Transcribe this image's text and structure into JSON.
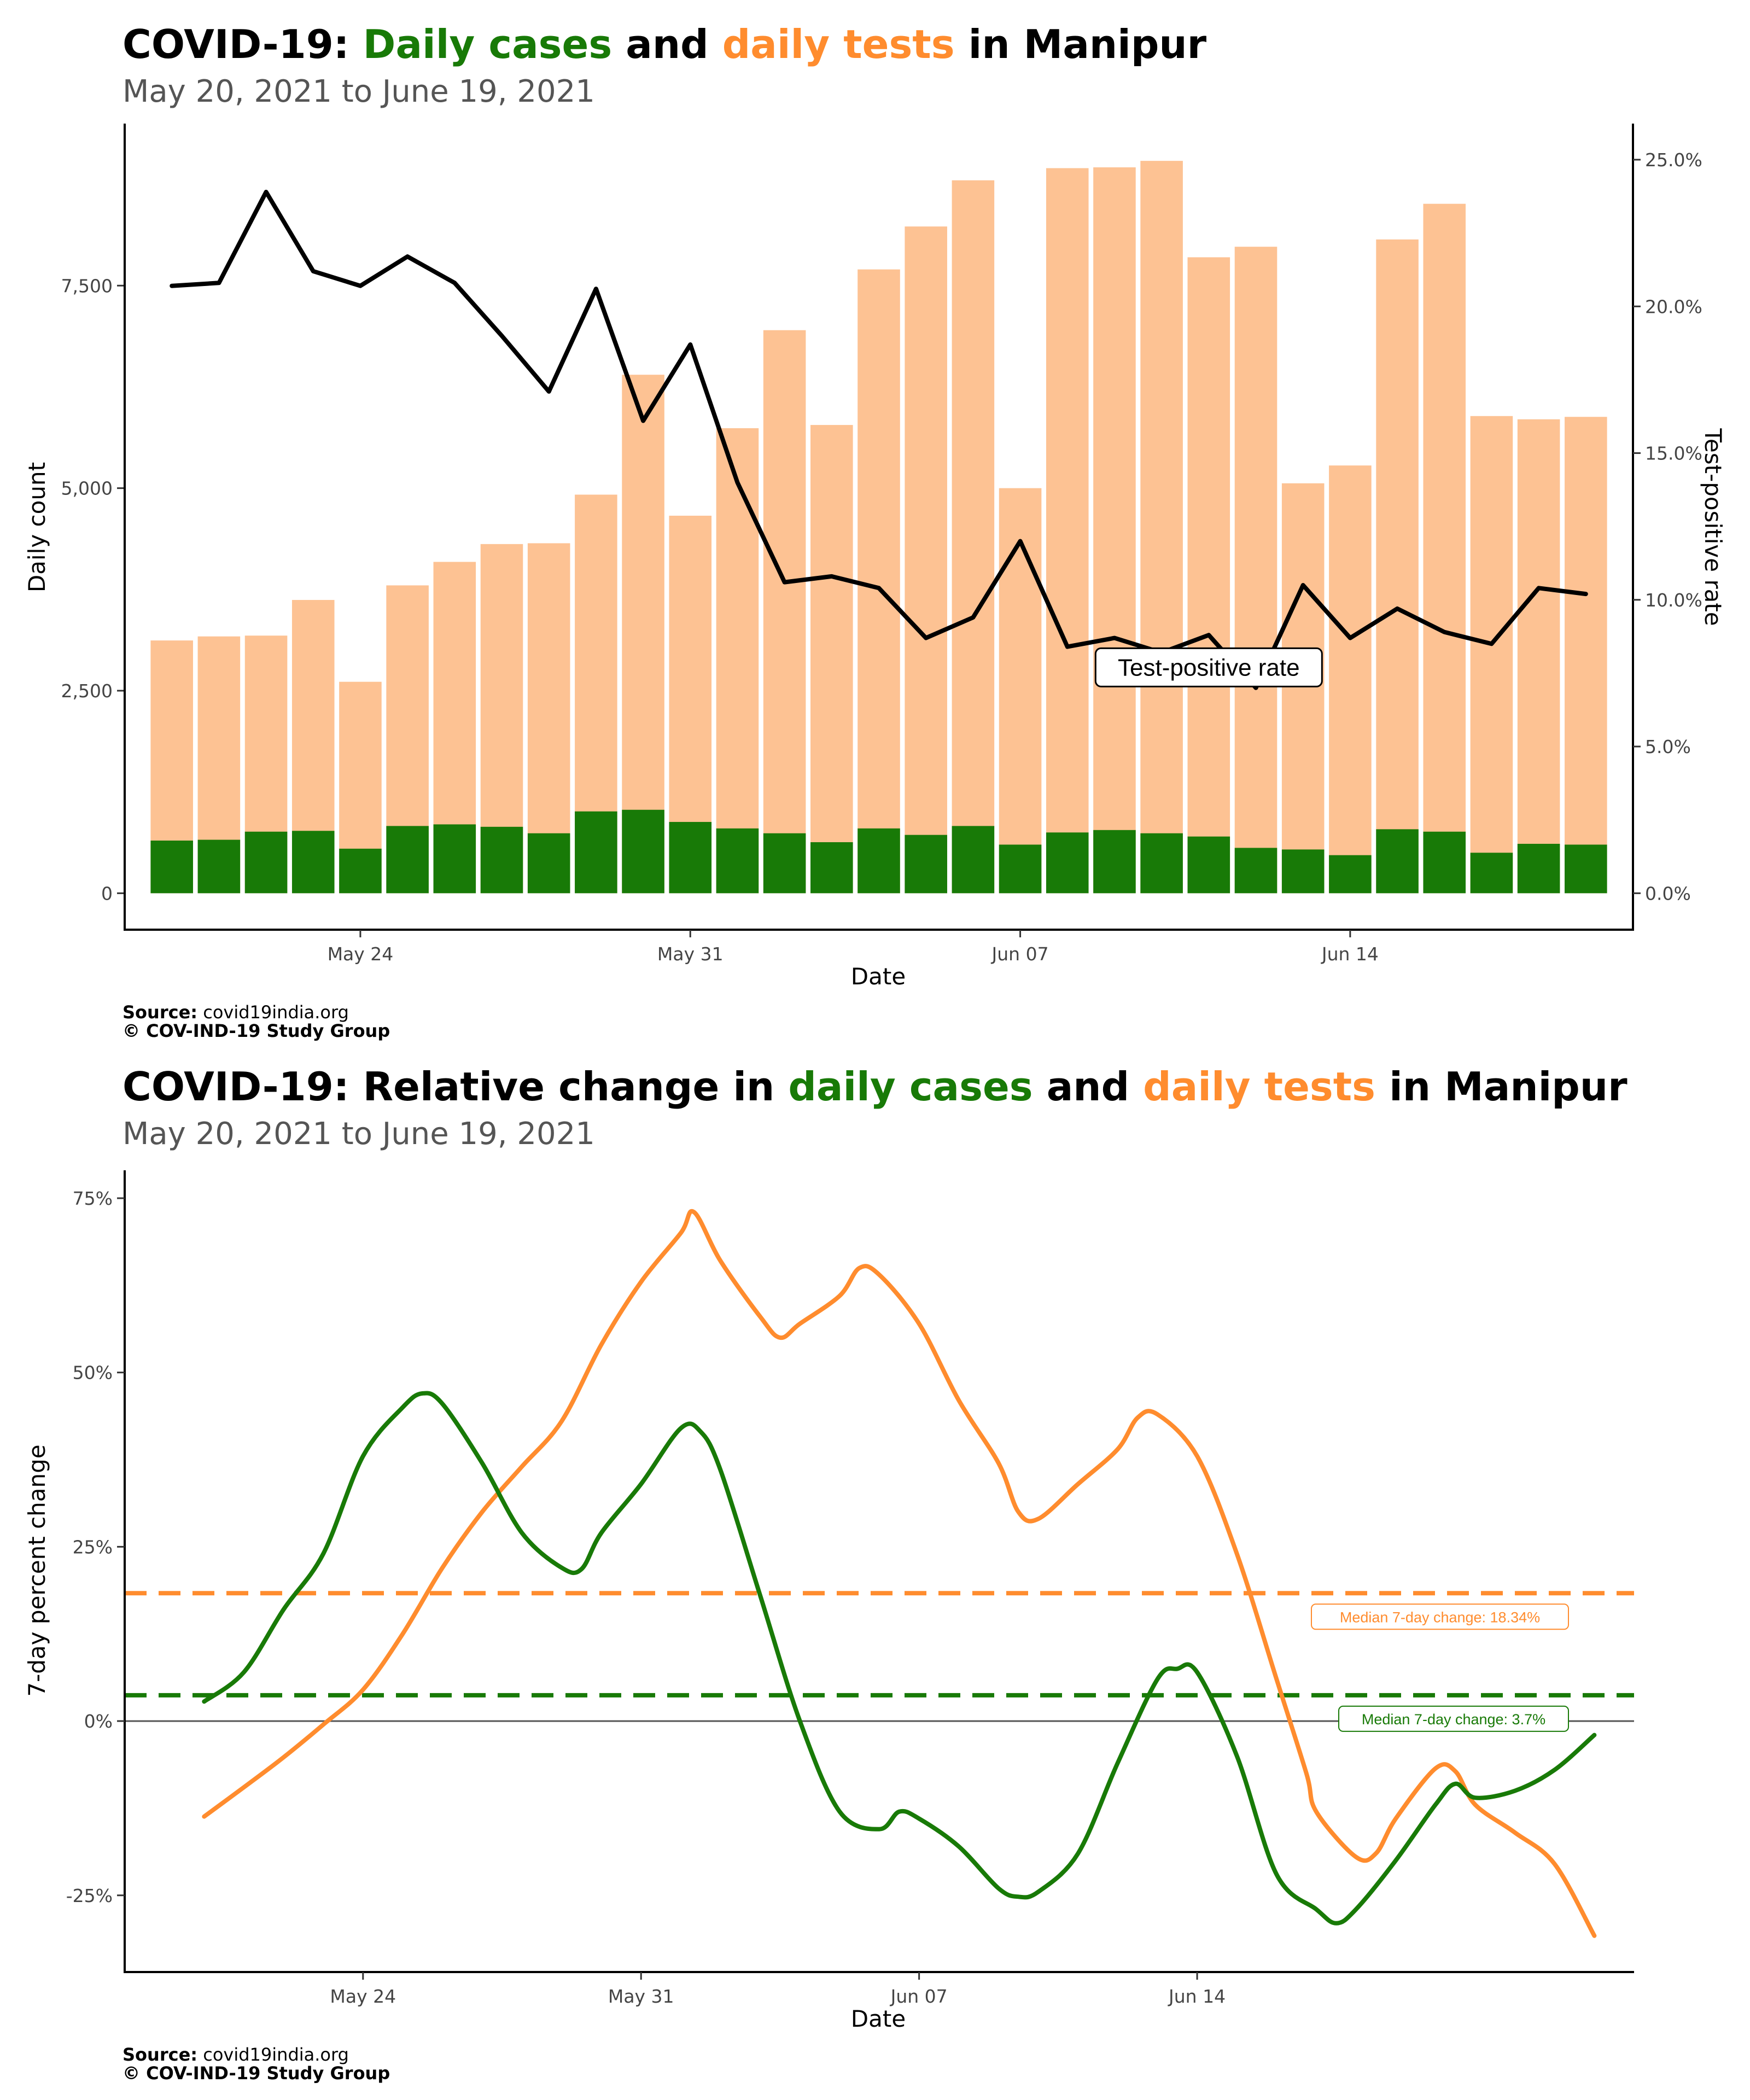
{
  "colors": {
    "cases": "#187a07",
    "tests": "#ff8c2e",
    "tests_bar": "#fdc293",
    "rate": "#000000",
    "subtitle": "#555555",
    "zero_line": "#555555"
  },
  "chart1": {
    "title": {
      "prefix": "COVID-19: ",
      "cases_word": "Daily cases",
      "and_word": " and ",
      "tests_word": "daily tests",
      "suffix": " in Manipur"
    },
    "subtitle": "May 20, 2021 to June 19, 2021",
    "source_label": "Source:",
    "source_value": " covid19india.org",
    "copyright": "© COV-IND-19 Study Group"
  },
  "chart2": {
    "title": {
      "prefix": "COVID-19: Relative change in ",
      "cases_word": "daily cases",
      "and_word": " and ",
      "tests_word": "daily tests",
      "suffix": " in Manipur"
    },
    "subtitle": "May 20, 2021 to June 19, 2021",
    "source_label": "Source:",
    "source_value": " covid19india.org",
    "copyright": "© COV-IND-19 Study Group"
  },
  "chart_data": [
    {
      "type": "bar",
      "xlabel": "Date",
      "ylabel": "Daily count",
      "y2label": "Test-positive rate",
      "annotation": "Test-positive rate",
      "annotation_at": {
        "date": "2021-06-11",
        "y": 2700
      },
      "x": [
        "2021-05-20",
        "2021-05-21",
        "2021-05-22",
        "2021-05-23",
        "2021-05-24",
        "2021-05-25",
        "2021-05-26",
        "2021-05-27",
        "2021-05-28",
        "2021-05-29",
        "2021-05-30",
        "2021-05-31",
        "2021-06-01",
        "2021-06-02",
        "2021-06-03",
        "2021-06-04",
        "2021-06-05",
        "2021-06-06",
        "2021-06-07",
        "2021-06-08",
        "2021-06-09",
        "2021-06-10",
        "2021-06-11",
        "2021-06-12",
        "2021-06-13",
        "2021-06-14",
        "2021-06-15",
        "2021-06-16",
        "2021-06-17",
        "2021-06-18",
        "2021-06-19"
      ],
      "x_ticks": [
        {
          "date": "2021-05-24",
          "label": "May 24"
        },
        {
          "date": "2021-05-31",
          "label": "May 31"
        },
        {
          "date": "2021-06-07",
          "label": "Jun 07"
        },
        {
          "date": "2021-06-14",
          "label": "Jun 14"
        }
      ],
      "x_range": [
        "2021-05-19",
        "2021-06-20"
      ],
      "ylim": [
        -450,
        9500
      ],
      "y_ticks": [
        {
          "v": 0,
          "label": "0"
        },
        {
          "v": 2500,
          "label": "2,500"
        },
        {
          "v": 5000,
          "label": "5,000"
        },
        {
          "v": 7500,
          "label": "7,500"
        }
      ],
      "y2_max_percent": 25,
      "y2_ticks": [
        {
          "v": 0,
          "label": "0.0%"
        },
        {
          "v": 5,
          "label": "5.0%"
        },
        {
          "v": 10,
          "label": "10.0%"
        },
        {
          "v": 15,
          "label": "15.0%"
        },
        {
          "v": 20,
          "label": "20.0%"
        },
        {
          "v": 25,
          "label": "25.0%"
        }
      ],
      "series": [
        {
          "name": "daily tests",
          "values": [
            3120,
            3170,
            3180,
            3620,
            2610,
            3800,
            4090,
            4310,
            4320,
            4920,
            6400,
            4660,
            5740,
            6950,
            5780,
            7700,
            8230,
            8800,
            5000,
            8950,
            8960,
            9040,
            7850,
            7980,
            5060,
            5280,
            8070,
            8510,
            5890,
            5850,
            5880
          ]
        },
        {
          "name": "daily cases",
          "values": [
            650,
            660,
            760,
            770,
            550,
            830,
            850,
            820,
            740,
            1010,
            1030,
            880,
            800,
            740,
            630,
            800,
            720,
            830,
            600,
            750,
            780,
            740,
            700,
            560,
            540,
            470,
            790,
            760,
            500,
            610,
            600
          ]
        },
        {
          "name": "test-positive rate (%)",
          "values": [
            20.7,
            20.8,
            23.9,
            21.2,
            20.7,
            21.7,
            20.8,
            19.0,
            17.1,
            20.6,
            16.1,
            18.7,
            14.0,
            10.6,
            10.8,
            10.4,
            8.7,
            9.4,
            12.0,
            8.4,
            8.7,
            8.2,
            8.8,
            7.0,
            10.5,
            8.7,
            9.7,
            8.9,
            8.5,
            10.4,
            10.2
          ]
        }
      ]
    },
    {
      "type": "line",
      "xlabel": "Date",
      "ylabel": "7-day percent change",
      "x_ticks": [
        {
          "date": "2021-05-24",
          "label": "May 24"
        },
        {
          "date": "2021-05-31",
          "label": "May 31"
        },
        {
          "date": "2021-06-07",
          "label": "Jun 07"
        },
        {
          "date": "2021-06-14",
          "label": "Jun 14"
        }
      ],
      "x_range": [
        "2021-05-18",
        "2021-06-25"
      ],
      "ylim": [
        -36,
        79
      ],
      "y_ticks": [
        {
          "v": -25,
          "label": "-25%"
        },
        {
          "v": 0,
          "label": "0%"
        },
        {
          "v": 25,
          "label": "25%"
        },
        {
          "v": 50,
          "label": "50%"
        },
        {
          "v": 75,
          "label": "75%"
        }
      ],
      "zero_line": 0,
      "medians": [
        {
          "series": "daily tests",
          "value": 18.34,
          "label": "Median 7-day change: 18.34%"
        },
        {
          "series": "daily cases",
          "value": 3.7,
          "label": "Median 7-day change: 3.7%"
        }
      ],
      "series": [
        {
          "name": "daily tests",
          "points": [
            [
              "2021-05-20",
              -13.7
            ],
            [
              "2021-05-21",
              -9.5
            ],
            [
              "2021-05-22",
              -5.2
            ],
            [
              "2021-05-23",
              -0.5
            ],
            [
              "2021-05-24",
              4.5
            ],
            [
              "2021-05-25",
              12.5
            ],
            [
              "2021-05-26",
              22
            ],
            [
              "2021-05-27",
              30
            ],
            [
              "2021-05-28",
              36.5
            ],
            [
              "2021-05-29",
              43
            ],
            [
              "2021-05-30",
              54
            ],
            [
              "2021-05-31",
              63
            ],
            [
              "2021-06-01",
              70
            ],
            [
              "2021-06-01T08:00",
              73
            ],
            [
              "2021-06-02",
              66
            ],
            [
              "2021-06-03",
              58
            ],
            [
              "2021-06-03T12:00",
              55
            ],
            [
              "2021-06-04",
              57
            ],
            [
              "2021-06-05",
              61
            ],
            [
              "2021-06-05T12:00",
              65
            ],
            [
              "2021-06-06",
              64
            ],
            [
              "2021-06-07",
              57
            ],
            [
              "2021-06-08",
              46
            ],
            [
              "2021-06-09",
              37
            ],
            [
              "2021-06-09T12:00",
              30
            ],
            [
              "2021-06-10",
              29
            ],
            [
              "2021-06-11",
              34
            ],
            [
              "2021-06-12",
              39
            ],
            [
              "2021-06-12T12:00",
              43.5
            ],
            [
              "2021-06-13",
              44
            ],
            [
              "2021-06-14",
              38
            ],
            [
              "2021-06-15",
              24
            ],
            [
              "2021-06-16",
              6
            ],
            [
              "2021-06-16T18:00",
              -7.5
            ],
            [
              "2021-06-17",
              -13
            ],
            [
              "2021-06-18",
              -19.5
            ],
            [
              "2021-06-18T12:00",
              -19
            ],
            [
              "2021-06-19",
              -14
            ],
            [
              "2021-06-20",
              -6.8
            ],
            [
              "2021-06-20T12:00",
              -7.2
            ],
            [
              "2021-06-21",
              -12
            ],
            [
              "2021-06-22",
              -16
            ],
            [
              "2021-06-23",
              -20.5
            ],
            [
              "2021-06-24",
              -30.8
            ]
          ]
        },
        {
          "name": "daily cases",
          "points": [
            [
              "2021-05-20",
              2.8
            ],
            [
              "2021-05-21",
              7
            ],
            [
              "2021-05-22",
              16
            ],
            [
              "2021-05-23",
              24
            ],
            [
              "2021-05-24",
              38
            ],
            [
              "2021-05-25",
              45
            ],
            [
              "2021-05-25T12:00",
              47
            ],
            [
              "2021-05-26",
              45.5
            ],
            [
              "2021-05-27",
              37
            ],
            [
              "2021-05-28",
              27
            ],
            [
              "2021-05-29",
              22
            ],
            [
              "2021-05-29T12:00",
              21.8
            ],
            [
              "2021-05-30",
              27
            ],
            [
              "2021-05-31",
              34
            ],
            [
              "2021-06-01",
              42
            ],
            [
              "2021-06-01T12:00",
              41.5
            ],
            [
              "2021-06-02",
              36
            ],
            [
              "2021-06-03",
              18
            ],
            [
              "2021-06-04",
              0
            ],
            [
              "2021-06-05",
              -13
            ],
            [
              "2021-06-06",
              -15.5
            ],
            [
              "2021-06-06T12:00",
              -13
            ],
            [
              "2021-06-07",
              -14
            ],
            [
              "2021-06-08",
              -18
            ],
            [
              "2021-06-09",
              -24
            ],
            [
              "2021-06-09T12:00",
              -25.2
            ],
            [
              "2021-06-10",
              -24.5
            ],
            [
              "2021-06-11",
              -19
            ],
            [
              "2021-06-12",
              -6
            ],
            [
              "2021-06-13",
              6
            ],
            [
              "2021-06-13T12:00",
              7.5
            ],
            [
              "2021-06-14",
              7
            ],
            [
              "2021-06-15",
              -5
            ],
            [
              "2021-06-16",
              -22
            ],
            [
              "2021-06-17",
              -27
            ],
            [
              "2021-06-17T12:00",
              -29
            ],
            [
              "2021-06-18",
              -27
            ],
            [
              "2021-06-19",
              -20
            ],
            [
              "2021-06-20",
              -12
            ],
            [
              "2021-06-20T12:00",
              -9
            ],
            [
              "2021-06-21",
              -11
            ],
            [
              "2021-06-22",
              -10
            ],
            [
              "2021-06-23",
              -7
            ],
            [
              "2021-06-24",
              -2
            ]
          ]
        }
      ]
    }
  ]
}
